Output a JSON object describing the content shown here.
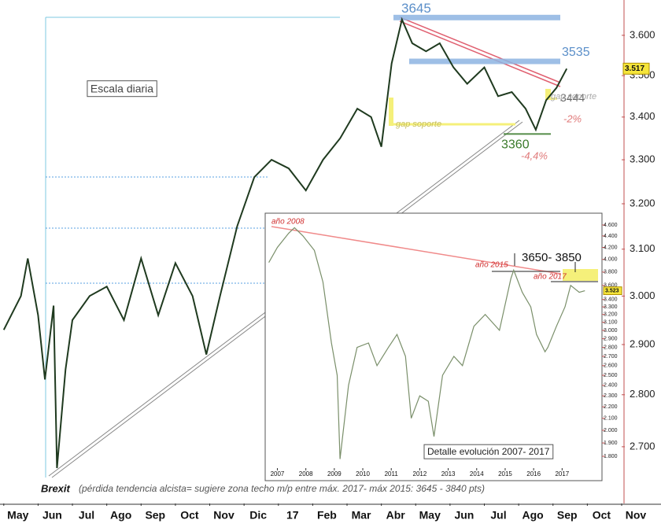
{
  "chart_data": [
    {
      "type": "line",
      "log": true,
      "xlim": [
        -0.11,
        18
      ],
      "ylim": [
        2595,
        3690
      ],
      "xticks": [
        {
          "value": 0,
          "label": "May"
        },
        {
          "value": 1,
          "label": "Jun"
        },
        {
          "value": 2,
          "label": "Jul"
        },
        {
          "value": 3,
          "label": "Ago"
        },
        {
          "value": 4,
          "label": "Sep"
        },
        {
          "value": 5,
          "label": "Oct"
        },
        {
          "value": 6,
          "label": "Nov"
        },
        {
          "value": 7,
          "label": "Dic"
        },
        {
          "value": 8,
          "label": "17"
        },
        {
          "value": 9,
          "label": "Feb"
        },
        {
          "value": 10,
          "label": "Mar"
        },
        {
          "value": 11,
          "label": "Abr"
        },
        {
          "value": 12,
          "label": "May"
        },
        {
          "value": 13,
          "label": "Jun"
        },
        {
          "value": 14,
          "label": "Jul"
        },
        {
          "value": 15,
          "label": "Ago"
        },
        {
          "value": 16,
          "label": "Sep"
        },
        {
          "value": 17,
          "label": "Oct"
        },
        {
          "value": 18,
          "label": "Nov"
        }
      ],
      "yticks": [
        {
          "value": 2700,
          "label": "2.700"
        },
        {
          "value": 2800,
          "label": "2.800"
        },
        {
          "value": 2900,
          "label": "2.900"
        },
        {
          "value": 3000,
          "label": "3.000"
        },
        {
          "value": 3100,
          "label": "3.100"
        },
        {
          "value": 3200,
          "label": "3.200"
        },
        {
          "value": 3300,
          "label": "3.300"
        },
        {
          "value": 3400,
          "label": "3.400"
        },
        {
          "value": 3500,
          "label": "3.500"
        },
        {
          "value": 3600,
          "label": "3.600"
        }
      ],
      "x": [
        0,
        0.5,
        0.7,
        1.0,
        1.2,
        1.45,
        1.55,
        1.8,
        2.0,
        2.5,
        3.0,
        3.5,
        4.0,
        4.5,
        5.0,
        5.5,
        5.9,
        6.3,
        6.8,
        7.3,
        7.8,
        8.3,
        8.8,
        9.3,
        9.8,
        10.3,
        10.7,
        11.0,
        11.3,
        11.6,
        11.9,
        12.3,
        12.7,
        13.1,
        13.5,
        14.0,
        14.4,
        14.8,
        15.2,
        15.5,
        15.8,
        16.1,
        16.4
      ],
      "series": [
        {
          "color": "#1f3a1f",
          "values": [
            2930,
            3000,
            3080,
            2960,
            2830,
            2980,
            2660,
            2850,
            2950,
            3000,
            3020,
            2950,
            3080,
            2960,
            3070,
            3000,
            2880,
            3000,
            3150,
            3260,
            3300,
            3280,
            3230,
            3300,
            3350,
            3420,
            3400,
            3330,
            3530,
            3640,
            3580,
            3560,
            3580,
            3520,
            3480,
            3520,
            3450,
            3460,
            3420,
            3370,
            3440,
            3470,
            3517
          ]
        }
      ],
      "levels": [
        {
          "value": 3645,
          "color": "#8db4e2"
        },
        {
          "value": 3535,
          "color": "#8db4e2"
        },
        {
          "value": 3444,
          "color": "#f5f07a"
        },
        {
          "value": 3360,
          "color": "#3a7a2a"
        }
      ],
      "last": {
        "value": 3517,
        "label": "3.517"
      },
      "annotations": [
        "Escala diaria",
        "gap soporte",
        "-2%",
        "gap soporte",
        "-4,4%",
        "Brexit",
        "(pérdida tendencia alcista= sugiere zona techo m/p  entre máx. 2017- máx 2015: 3645 - 3840 pts)"
      ]
    },
    {
      "type": "line",
      "log": true,
      "xlim": [
        2006.6,
        2018.4
      ],
      "ylim": [
        1716,
        4810
      ],
      "xticks": [
        2007,
        2008,
        2009,
        2010,
        2011,
        2012,
        2013,
        2014,
        2015,
        2016,
        2017
      ],
      "yticks": [
        {
          "value": 1800,
          "label": "1.800"
        },
        {
          "value": 1900,
          "label": "1.900"
        },
        {
          "value": 2000,
          "label": "2.000"
        },
        {
          "value": 2100,
          "label": "2.100"
        },
        {
          "value": 2200,
          "label": "2.200"
        },
        {
          "value": 2300,
          "label": "2.300"
        },
        {
          "value": 2400,
          "label": "2.400"
        },
        {
          "value": 2500,
          "label": "2.500"
        },
        {
          "value": 2600,
          "label": "2.600"
        },
        {
          "value": 2700,
          "label": "2.700"
        },
        {
          "value": 2800,
          "label": "2.800"
        },
        {
          "value": 2900,
          "label": "2.900"
        },
        {
          "value": 3000,
          "label": "3.000"
        },
        {
          "value": 3100,
          "label": "3.100"
        },
        {
          "value": 3200,
          "label": "3.200"
        },
        {
          "value": 3300,
          "label": "3.300"
        },
        {
          "value": 3400,
          "label": "3.400"
        },
        {
          "value": 3600,
          "label": "3.600"
        },
        {
          "value": 3800,
          "label": "3.800"
        },
        {
          "value": 4000,
          "label": "4.000"
        },
        {
          "value": 4200,
          "label": "4.200"
        },
        {
          "value": 4400,
          "label": "4.400"
        },
        {
          "value": 4600,
          "label": "4.600"
        }
      ],
      "x": [
        2006.7,
        2007.0,
        2007.4,
        2007.6,
        2007.9,
        2008.3,
        2008.6,
        2008.9,
        2009.1,
        2009.2,
        2009.5,
        2009.8,
        2010.2,
        2010.5,
        2010.9,
        2011.2,
        2011.5,
        2011.7,
        2012.0,
        2012.3,
        2012.5,
        2012.8,
        2013.2,
        2013.5,
        2013.9,
        2014.3,
        2014.8,
        2015.2,
        2015.3,
        2015.6,
        2015.9,
        2016.1,
        2016.4,
        2016.5,
        2016.8,
        2017.1,
        2017.3,
        2017.6,
        2017.8
      ],
      "series": [
        {
          "color": "#7a8f6a",
          "values": [
            3950,
            4200,
            4450,
            4550,
            4400,
            4150,
            3650,
            2850,
            2500,
            1780,
            2400,
            2800,
            2850,
            2600,
            2800,
            2950,
            2700,
            2100,
            2300,
            2250,
            1950,
            2500,
            2700,
            2600,
            3050,
            3200,
            3000,
            3700,
            3830,
            3500,
            3300,
            2950,
            2750,
            2800,
            3050,
            3300,
            3600,
            3500,
            3523
          ]
        }
      ],
      "last": {
        "value": 3523,
        "label": "3.523"
      },
      "annotations": [
        "año 2008",
        "año 2015",
        "3650- 3850",
        "año 2017",
        "Detalle evolución 2007- 2017"
      ]
    }
  ]
}
